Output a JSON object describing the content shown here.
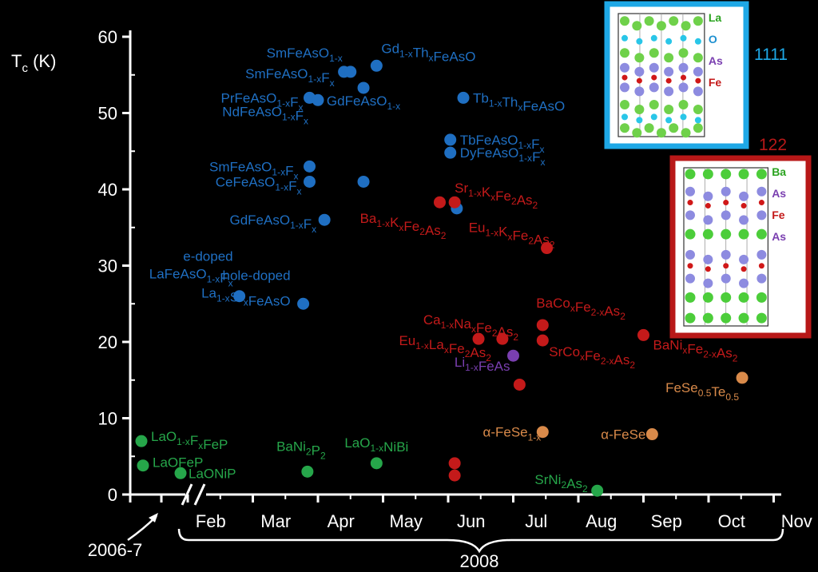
{
  "chart_data": {
    "type": "scatter",
    "title": "",
    "ylabel": "T_c (K)",
    "ylabel_parts": {
      "main": "T",
      "sub": "c",
      "unit": " (K)"
    },
    "ylim": [
      0,
      60
    ],
    "ytick_values": [
      0,
      10,
      20,
      30,
      40,
      50,
      60
    ],
    "ytick_labels": [
      "0",
      "10",
      "20",
      "30",
      "40",
      "50",
      "60"
    ],
    "xtick_labels": [
      "Feb",
      "Mar",
      "Apr",
      "May",
      "Jun",
      "Jul",
      "Aug",
      "Sep",
      "Oct",
      "Nov"
    ],
    "x_year_label": "2008",
    "x_early_label": "2006-7",
    "colors": {
      "1111": "#1f6fc2",
      "122": "#c41a1a",
      "pnictide_other": "#7a3fb0",
      "FeSe": "#d98a4a",
      "Ni_P_other": "#26a64a"
    },
    "series": [
      {
        "name": "1111",
        "points": [
          {
            "x": "2008-02-24",
            "y": 26.0,
            "label": "e-doped\nLaFeAsO1-xFx"
          },
          {
            "x": "2008-03-25",
            "y": 25.0,
            "label": "hole-doped\nLa1-xSrxFeAsO"
          },
          {
            "x": "2008-03-28",
            "y": 43.0,
            "label": "SmFeAsO1-xFx"
          },
          {
            "x": "2008-03-28",
            "y": 41.0,
            "label": "CeFeAsO1-xFx"
          },
          {
            "x": "2008-03-28",
            "y": 52.0,
            "label": "PrFeAsO1-xFx"
          },
          {
            "x": "2008-04-01",
            "y": 51.7,
            "label": "NdFeAsO1-xFx"
          },
          {
            "x": "2008-04-04",
            "y": 36.0,
            "label": "GdFeAsO1-xFx"
          },
          {
            "x": "2008-04-13",
            "y": 55.4,
            "label": "SmFeAsO1-xFx"
          },
          {
            "x": "2008-04-16",
            "y": 55.4,
            "label": "SmFeAsO1-x"
          },
          {
            "x": "2008-04-22",
            "y": 53.3,
            "label": "GdFeAsO1-x"
          },
          {
            "x": "2008-04-22",
            "y": 41.0,
            "label": ""
          },
          {
            "x": "2008-04-28",
            "y": 56.2,
            "label": "Gd1-xThxFeAsO"
          },
          {
            "x": "2008-06-02",
            "y": 46.5,
            "label": "TbFeAsO1-xFx"
          },
          {
            "x": "2008-06-02",
            "y": 44.8,
            "label": "DyFeAsO1-xFx"
          },
          {
            "x": "2008-06-05",
            "y": 37.5,
            "label": ""
          },
          {
            "x": "2008-06-08",
            "y": 52.0,
            "label": "Tb1-xThxFeAsO"
          }
        ]
      },
      {
        "name": "122",
        "points": [
          {
            "x": "2008-05-28",
            "y": 38.3,
            "label": "Ba1-xKxFe2As2"
          },
          {
            "x": "2008-06-04",
            "y": 38.3,
            "label": "Sr1-xKxFe2As2"
          },
          {
            "x": "2008-07-17",
            "y": 32.3,
            "label": "Eu1-xKxFe2As2"
          },
          {
            "x": "2008-06-15",
            "y": 20.4,
            "label": "Ca1-xNaxFe2As2"
          },
          {
            "x": "2008-06-26",
            "y": 20.4,
            "label": "Eu1-xLaxFe2As2"
          },
          {
            "x": "2008-07-15",
            "y": 22.2,
            "label": "BaCoxFe2-xAs2"
          },
          {
            "x": "2008-07-15",
            "y": 20.2,
            "label": "SrCoxFe2-xAs2"
          },
          {
            "x": "2008-07-04",
            "y": 14.4,
            "label": ""
          },
          {
            "x": "2008-09-01",
            "y": 20.9,
            "label": "BaNixFe2-xAs2"
          },
          {
            "x": "2008-06-04",
            "y": 4.1,
            "label": ""
          },
          {
            "x": "2008-06-04",
            "y": 2.5,
            "label": ""
          }
        ]
      },
      {
        "name": "",
        "points": [
          {
            "x": "2008-07-01",
            "y": 18.2,
            "label": "Li1-xFeAs"
          }
        ]
      },
      {
        "name": "",
        "points": [
          {
            "x": "2008-07-15",
            "y": 8.2,
            "label": "α-FeSe1-x"
          },
          {
            "x": "2008-09-05",
            "y": 7.9,
            "label": "α-FeSe"
          },
          {
            "x": "2008-10-17",
            "y": 15.3,
            "label": "FeSe0.5Te0.5"
          }
        ]
      },
      {
        "name": "",
        "points": [
          {
            "x": "2006-7",
            "y": 7.0,
            "label": "LaO1-xFxFeP"
          },
          {
            "x": "2006-7",
            "y": 3.8,
            "label": "LaOFeP"
          },
          {
            "x": "2006-7",
            "y": 2.8,
            "label": "LaONiP"
          },
          {
            "x": "2008-03-27",
            "y": 3.0,
            "label": "BaNi2P2"
          },
          {
            "x": "2008-04-28",
            "y": 4.1,
            "label": "LaO1-xNiBi"
          },
          {
            "x": "2008-08-10",
            "y": 0.5,
            "label": "SrNi2As2"
          }
        ]
      }
    ],
    "insets": [
      {
        "name": "1111",
        "labels": [
          "La",
          "O",
          "As",
          "Fe"
        ]
      },
      {
        "name": "122",
        "labels": [
          "Ba",
          "As",
          "Fe",
          "As"
        ]
      }
    ]
  }
}
